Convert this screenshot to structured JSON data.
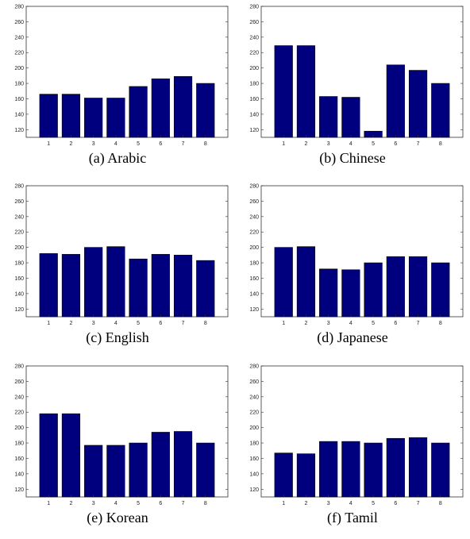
{
  "chart_data": [
    {
      "type": "bar",
      "caption": "(a) Arabic",
      "categories": [
        "1",
        "2",
        "3",
        "4",
        "5",
        "6",
        "7",
        "8"
      ],
      "values": [
        166,
        166,
        161,
        161,
        176,
        186,
        189,
        180
      ],
      "ylim": [
        110,
        280
      ],
      "yticks": [
        "120",
        "140",
        "160",
        "180",
        "200",
        "220",
        "240",
        "260",
        "280"
      ],
      "color": "#00007f"
    },
    {
      "type": "bar",
      "caption": "(b) Chinese",
      "categories": [
        "1",
        "2",
        "3",
        "4",
        "5",
        "6",
        "7",
        "8"
      ],
      "values": [
        229,
        229,
        163,
        162,
        118,
        204,
        197,
        180
      ],
      "ylim": [
        110,
        280
      ],
      "yticks": [
        "120",
        "140",
        "160",
        "180",
        "200",
        "220",
        "240",
        "260",
        "280"
      ],
      "color": "#00007f"
    },
    {
      "type": "bar",
      "caption": "(c) English",
      "categories": [
        "1",
        "2",
        "3",
        "4",
        "5",
        "6",
        "7",
        "8"
      ],
      "values": [
        192,
        191,
        200,
        201,
        185,
        191,
        190,
        183
      ],
      "ylim": [
        110,
        280
      ],
      "yticks": [
        "120",
        "140",
        "160",
        "180",
        "200",
        "220",
        "240",
        "260",
        "280"
      ],
      "color": "#00007f"
    },
    {
      "type": "bar",
      "caption": "(d) Japanese",
      "categories": [
        "1",
        "2",
        "3",
        "4",
        "5",
        "6",
        "7",
        "8"
      ],
      "values": [
        200,
        201,
        172,
        171,
        180,
        188,
        188,
        180
      ],
      "ylim": [
        110,
        280
      ],
      "yticks": [
        "120",
        "140",
        "160",
        "180",
        "200",
        "220",
        "240",
        "260",
        "280"
      ],
      "color": "#00007f"
    },
    {
      "type": "bar",
      "caption": "(e) Korean",
      "categories": [
        "1",
        "2",
        "3",
        "4",
        "5",
        "6",
        "7",
        "8"
      ],
      "values": [
        218,
        218,
        177,
        177,
        180,
        194,
        195,
        180
      ],
      "ylim": [
        110,
        280
      ],
      "yticks": [
        "120",
        "140",
        "160",
        "180",
        "200",
        "220",
        "240",
        "260",
        "280"
      ],
      "color": "#00007f"
    },
    {
      "type": "bar",
      "caption": "(f) Tamil",
      "categories": [
        "1",
        "2",
        "3",
        "4",
        "5",
        "6",
        "7",
        "8"
      ],
      "values": [
        167,
        166,
        182,
        182,
        180,
        186,
        187,
        180
      ],
      "ylim": [
        110,
        280
      ],
      "yticks": [
        "120",
        "140",
        "160",
        "180",
        "200",
        "220",
        "240",
        "260",
        "280"
      ],
      "color": "#00007f"
    }
  ]
}
